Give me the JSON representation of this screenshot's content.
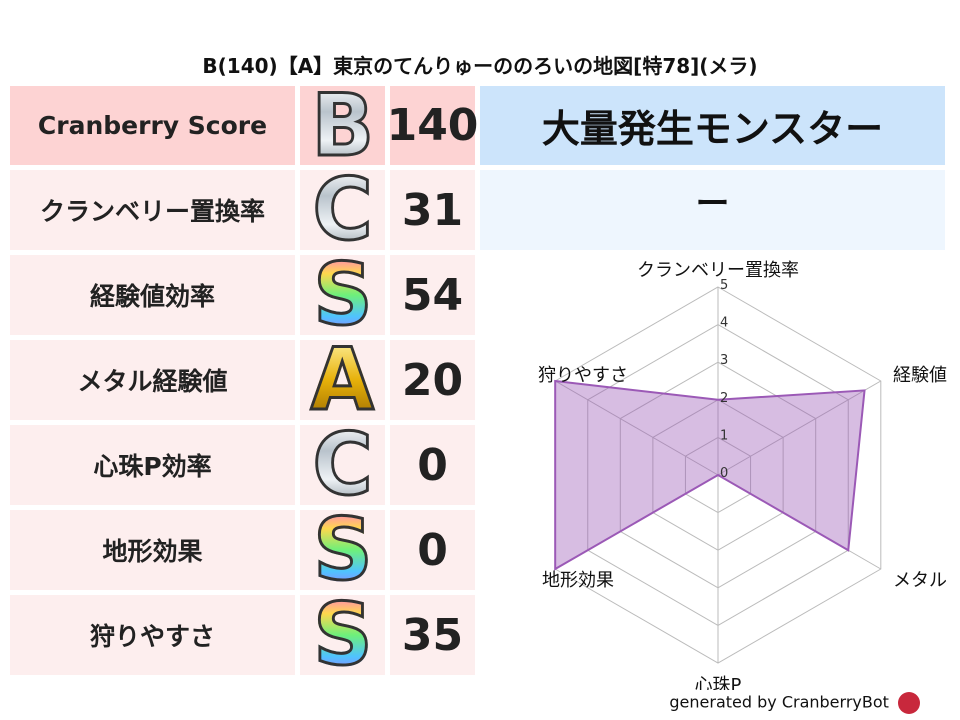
{
  "title": "B(140)【A】東京のてんりゅーののろいの地図[特78](メラ)",
  "rows": [
    {
      "label": "Cranberry Score",
      "grade": "B",
      "score": "140"
    },
    {
      "label": "クランベリー置換率",
      "grade": "C",
      "score": "31"
    },
    {
      "label": "経験値効率",
      "grade": "S",
      "score": "54"
    },
    {
      "label": "メタル経験値",
      "grade": "A",
      "score": "20"
    },
    {
      "label": "心珠P効率",
      "grade": "C",
      "score": "0"
    },
    {
      "label": "地形効果",
      "grade": "S",
      "score": "0"
    },
    {
      "label": "狩りやすさ",
      "grade": "S",
      "score": "35"
    }
  ],
  "panel": {
    "heading": "大量発生モンスター",
    "value": "ー"
  },
  "colors": {
    "header_pink": "#fdd3d3",
    "row_pink": "#fdeeee",
    "panel_blue": "#cce4fb",
    "panel_light": "#eef6fe",
    "radar": "#9b59b6"
  },
  "chart_data": {
    "type": "radar",
    "axes": [
      "クランベリー置換率",
      "経験値",
      "メタル",
      "心珠P",
      "地形効果",
      "狩りやすさ"
    ],
    "values": [
      2,
      4.5,
      4,
      0,
      5,
      5
    ],
    "rlim": [
      0,
      5
    ],
    "ticks": [
      "0",
      "1",
      "2",
      "3",
      "4",
      "5"
    ]
  },
  "footer": "generated by CranberryBot"
}
